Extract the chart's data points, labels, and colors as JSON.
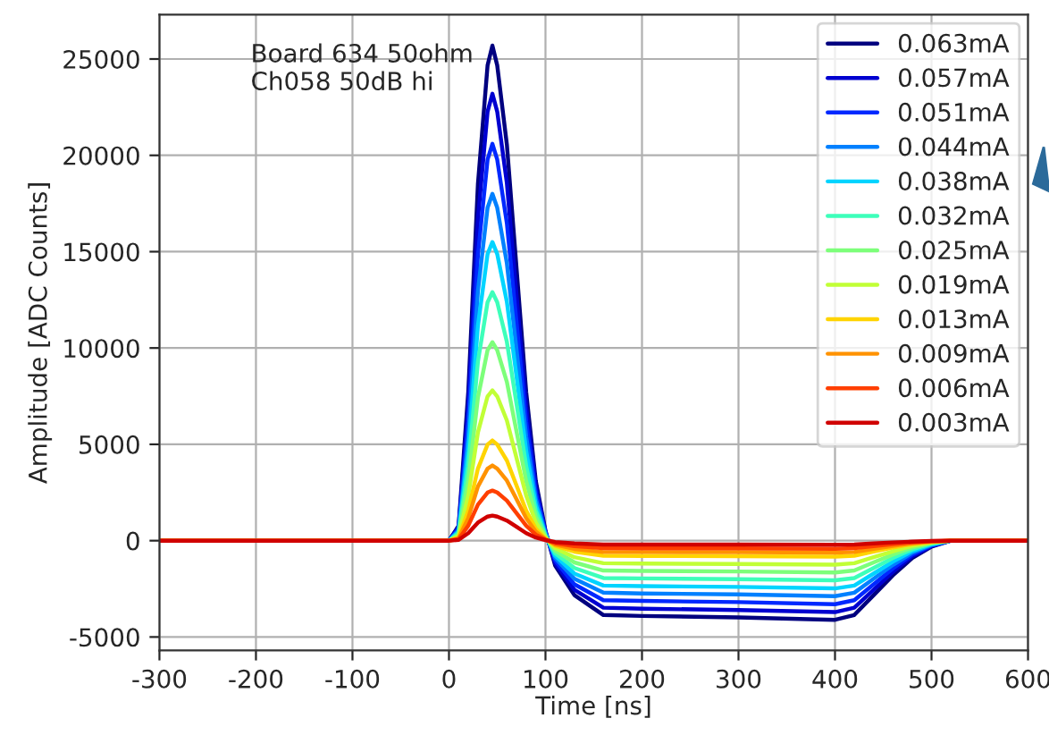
{
  "chart_data": {
    "type": "line",
    "xlabel": "Time [ns]",
    "ylabel": "Amplitude [ADC Counts]",
    "annotations": [
      "Board 634 50ohm\nCh058 50dB hi"
    ],
    "x": [
      -300,
      0,
      10,
      20,
      30,
      40,
      45,
      50,
      60,
      70,
      80,
      90,
      100,
      110,
      130,
      160,
      200,
      300,
      400,
      420,
      440,
      460,
      480,
      500,
      520,
      600
    ],
    "xlim": [
      -300,
      600
    ],
    "xticks": [
      -300,
      -200,
      -100,
      0,
      100,
      200,
      300,
      400,
      500,
      600
    ],
    "ylim": [
      -5700,
      27300
    ],
    "yticks": [
      -5000,
      0,
      5000,
      10000,
      15000,
      20000,
      25000
    ],
    "grid": true,
    "legend": "top right",
    "marker": "none",
    "line_style": "solid",
    "series": [
      {
        "name": "0.063mA",
        "color": "#00007f",
        "values": [
          0,
          0,
          770,
          7710,
          18500,
          24670,
          25700,
          24670,
          20560,
          14140,
          7710,
          3080,
          510,
          -1290,
          -2830,
          -3860,
          -3910,
          -3980,
          -4110,
          -3860,
          -2830,
          -1800,
          -900,
          -310,
          0,
          0
        ]
      },
      {
        "name": "0.057mA",
        "color": "#0000d0",
        "values": [
          0,
          0,
          700,
          6960,
          16700,
          22270,
          23200,
          22270,
          18560,
          12760,
          6960,
          2780,
          460,
          -1160,
          -2550,
          -3480,
          -3530,
          -3600,
          -3710,
          -3480,
          -2550,
          -1620,
          -810,
          -280,
          0,
          0
        ]
      },
      {
        "name": "0.051mA",
        "color": "#0028ff",
        "values": [
          0,
          0,
          620,
          6180,
          14830,
          19780,
          20600,
          19780,
          16480,
          11330,
          6180,
          2470,
          410,
          -1030,
          -2270,
          -3090,
          -3130,
          -3190,
          -3300,
          -3090,
          -2270,
          -1440,
          -720,
          -250,
          0,
          0
        ]
      },
      {
        "name": "0.044mA",
        "color": "#0080ff",
        "values": [
          0,
          0,
          540,
          5400,
          12960,
          17280,
          18000,
          17280,
          14400,
          9900,
          5400,
          2160,
          360,
          -900,
          -1980,
          -2700,
          -2740,
          -2790,
          -2880,
          -2700,
          -1980,
          -1260,
          -630,
          -220,
          0,
          0
        ]
      },
      {
        "name": "0.038mA",
        "color": "#00d4ff",
        "values": [
          0,
          0,
          470,
          4650,
          11160,
          14880,
          15500,
          14880,
          12400,
          8530,
          4650,
          1860,
          310,
          -780,
          -1710,
          -2330,
          -2360,
          -2400,
          -2480,
          -2330,
          -1710,
          -1090,
          -540,
          -190,
          0,
          0
        ]
      },
      {
        "name": "0.032mA",
        "color": "#3dffba",
        "values": [
          0,
          0,
          390,
          3870,
          9290,
          12380,
          12900,
          12380,
          10320,
          7100,
          3870,
          1550,
          260,
          -650,
          -1420,
          -1940,
          -1960,
          -2000,
          -2060,
          -1940,
          -1420,
          -900,
          -450,
          -150,
          0,
          0
        ]
      },
      {
        "name": "0.025mA",
        "color": "#7dff7a",
        "values": [
          0,
          0,
          310,
          3090,
          7420,
          9890,
          10300,
          9890,
          8240,
          5670,
          3090,
          1240,
          210,
          -520,
          -1130,
          -1550,
          -1570,
          -1600,
          -1650,
          -1550,
          -1130,
          -720,
          -360,
          -120,
          0,
          0
        ]
      },
      {
        "name": "0.019mA",
        "color": "#c1ff36",
        "values": [
          0,
          0,
          230,
          2340,
          5620,
          7490,
          7800,
          7490,
          6240,
          4290,
          2340,
          940,
          160,
          -390,
          -860,
          -1170,
          -1190,
          -1210,
          -1250,
          -1170,
          -860,
          -550,
          -270,
          -90,
          0,
          0
        ]
      },
      {
        "name": "0.013mA",
        "color": "#ffd400",
        "values": [
          0,
          0,
          160,
          1560,
          3740,
          4990,
          5200,
          4990,
          4160,
          2860,
          1560,
          620,
          100,
          -260,
          -570,
          -780,
          -790,
          -810,
          -830,
          -780,
          -570,
          -360,
          -180,
          -60,
          0,
          0
        ]
      },
      {
        "name": "0.009mA",
        "color": "#ff9200",
        "values": [
          0,
          0,
          120,
          1170,
          2810,
          3740,
          3900,
          3740,
          3120,
          2150,
          1170,
          470,
          80,
          -200,
          -430,
          -590,
          -590,
          -600,
          -620,
          -590,
          -430,
          -270,
          -140,
          -50,
          0,
          0
        ]
      },
      {
        "name": "0.006mA",
        "color": "#ff3f00",
        "values": [
          0,
          0,
          80,
          780,
          1870,
          2500,
          2600,
          2500,
          2080,
          1430,
          780,
          310,
          50,
          -130,
          -290,
          -390,
          -400,
          -400,
          -420,
          -390,
          -290,
          -180,
          -90,
          -30,
          0,
          0
        ]
      },
      {
        "name": "0.003mA",
        "color": "#d00000",
        "values": [
          0,
          0,
          40,
          390,
          940,
          1250,
          1300,
          1250,
          1040,
          720,
          390,
          160,
          30,
          -70,
          -140,
          -200,
          -200,
          -200,
          -210,
          -200,
          -140,
          -90,
          -50,
          -20,
          0,
          0
        ]
      }
    ]
  }
}
